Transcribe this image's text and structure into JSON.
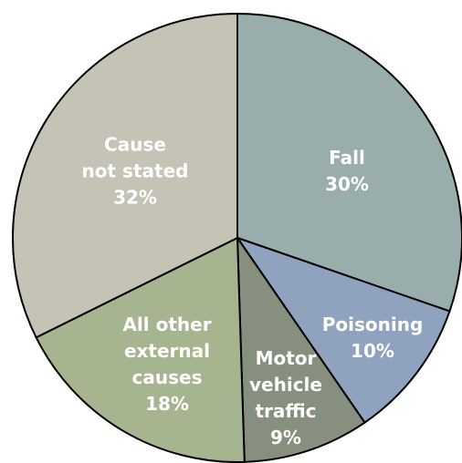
{
  "chart_data": {
    "type": "pie",
    "categories": [
      "Fall",
      "Poisoning",
      "Motor\nvehicle\ntraffic",
      "All other\nexternal\ncauses",
      "Cause\nnot stated"
    ],
    "values": [
      30,
      10,
      9,
      18,
      32
    ],
    "value_labels": [
      "30%",
      "10%",
      "9%",
      "18%",
      "32%"
    ],
    "colors": [
      "#98adac",
      "#8fa3bf",
      "#87907f",
      "#a6b48f",
      "#c4c3b5"
    ]
  }
}
